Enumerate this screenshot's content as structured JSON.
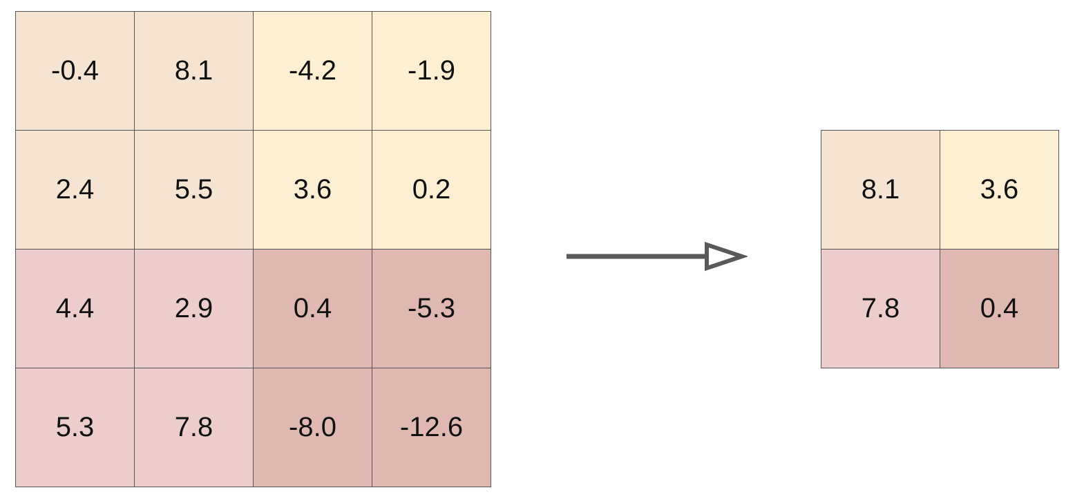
{
  "colors": {
    "quadrant_tl": "#f6e4d3",
    "quadrant_tr": "#fdefd1",
    "quadrant_bl": "#eccdcb",
    "quadrant_br": "#dfb9b1",
    "border": "#555555",
    "arrow": "#595959"
  },
  "input_grid": {
    "rows": [
      [
        "-0.4",
        "8.1",
        "-4.2",
        "-1.9"
      ],
      [
        "2.4",
        "5.5",
        "3.6",
        "0.2"
      ],
      [
        "4.4",
        "2.9",
        "0.4",
        "-5.3"
      ],
      [
        "5.3",
        "7.8",
        "-8.0",
        "-12.6"
      ]
    ]
  },
  "output_grid": {
    "rows": [
      [
        "8.1",
        "3.6"
      ],
      [
        "7.8",
        "0.4"
      ]
    ]
  },
  "arrow": {
    "icon": "right-arrow-icon"
  }
}
